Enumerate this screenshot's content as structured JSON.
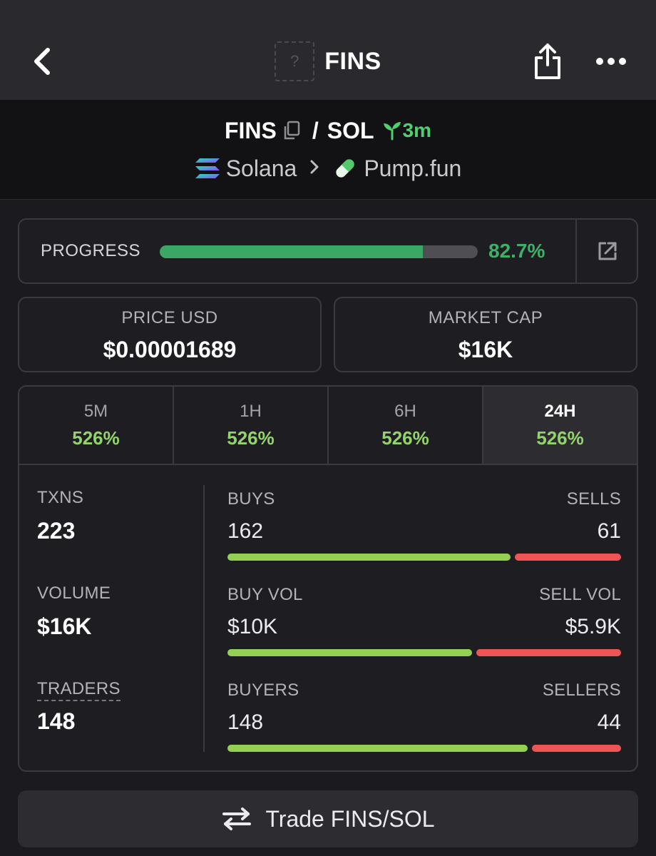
{
  "header": {
    "title": "FINS",
    "token_placeholder": "?"
  },
  "pair": {
    "base": "FINS",
    "separator": "/",
    "quote": "SOL",
    "age": "3m",
    "chain": "Solana",
    "dex": "Pump.fun"
  },
  "progress": {
    "label": "PROGRESS",
    "value_text": "82.7%",
    "fraction": 0.827
  },
  "stats": {
    "price": {
      "label": "PRICE USD",
      "value": "$0.00001689"
    },
    "market_cap": {
      "label": "MARKET CAP",
      "value": "$16K"
    }
  },
  "tabs": [
    {
      "label": "5M",
      "value": "526%"
    },
    {
      "label": "1H",
      "value": "526%"
    },
    {
      "label": "6H",
      "value": "526%"
    },
    {
      "label": "24H",
      "value": "526%",
      "active": true
    }
  ],
  "summary": {
    "txns": {
      "label": "TXNS",
      "value": "223"
    },
    "volume": {
      "label": "VOLUME",
      "value": "$16K"
    },
    "traders": {
      "label": "TRADERS",
      "value": "148"
    }
  },
  "ratios": {
    "txns": {
      "left_label": "BUYS",
      "right_label": "SELLS",
      "left_value": "162",
      "right_value": "61",
      "buy_amount": 162,
      "sell_amount": 61
    },
    "volume": {
      "left_label": "BUY VOL",
      "right_label": "SELL VOL",
      "left_value": "$10K",
      "right_value": "$5.9K",
      "buy_amount": 10,
      "sell_amount": 5.9
    },
    "traders": {
      "left_label": "BUYERS",
      "right_label": "SELLERS",
      "left_value": "148",
      "right_value": "44",
      "buy_amount": 148,
      "sell_amount": 44
    }
  },
  "trade_button": {
    "label": "Trade FINS/SOL"
  },
  "colors": {
    "accent_green": "#3fb068",
    "change_green": "#93d46a",
    "buy_bar": "#93d053",
    "sell_bar": "#ee5656"
  },
  "icons": {
    "back": "chevron-left-icon",
    "share": "share-icon",
    "more": "more-horizontal-icon",
    "copy": "copy-icon",
    "age": "seedling-icon",
    "chain": "solana-logo-icon",
    "dex": "pill-icon",
    "external": "external-link-icon",
    "trade": "swap-arrows-icon"
  }
}
